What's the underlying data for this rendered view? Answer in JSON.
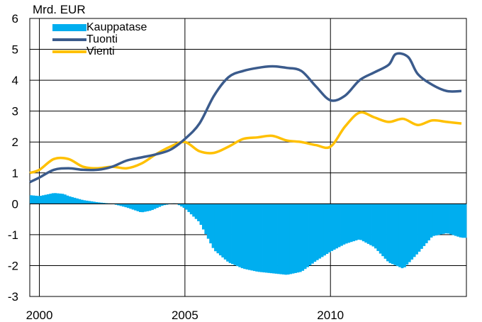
{
  "chart_data": {
    "type": "bar+line",
    "unit_label": "Mrd. EUR",
    "ylim": [
      -3,
      6
    ],
    "yticks": [
      "6",
      "5",
      "4",
      "3",
      "2",
      "1",
      "0",
      "-1",
      "-2",
      "-3"
    ],
    "xlim": [
      1999.67,
      2014.67
    ],
    "xticks": [
      {
        "label": "2000",
        "value": 2000
      },
      {
        "label": "2005",
        "value": 2005
      },
      {
        "label": "2010",
        "value": 2010
      }
    ],
    "grid": true,
    "legend_placement": "top-left",
    "colors": {
      "kauppatase": "#00AEEF",
      "tuonti": "#3B5B8C",
      "vienti": "#FFC000"
    },
    "series": [
      {
        "name": "Kauppatase",
        "kind": "bar",
        "points": [
          [
            1999.67,
            0.28
          ],
          [
            2000.0,
            0.25
          ],
          [
            2000.5,
            0.35
          ],
          [
            2000.83,
            0.32
          ],
          [
            2001.0,
            0.25
          ],
          [
            2001.5,
            0.12
          ],
          [
            2002.0,
            0.05
          ],
          [
            2002.5,
            0.0
          ],
          [
            2003.0,
            -0.12
          ],
          [
            2003.5,
            -0.28
          ],
          [
            2003.83,
            -0.22
          ],
          [
            2004.25,
            -0.05
          ],
          [
            2004.67,
            0.02
          ],
          [
            2005.0,
            -0.15
          ],
          [
            2005.5,
            -0.6
          ],
          [
            2006.0,
            -1.5
          ],
          [
            2006.5,
            -1.9
          ],
          [
            2007.0,
            -2.1
          ],
          [
            2007.5,
            -2.2
          ],
          [
            2008.0,
            -2.25
          ],
          [
            2008.5,
            -2.3
          ],
          [
            2009.0,
            -2.2
          ],
          [
            2009.5,
            -1.85
          ],
          [
            2010.0,
            -1.55
          ],
          [
            2010.5,
            -1.3
          ],
          [
            2011.0,
            -1.15
          ],
          [
            2011.5,
            -1.4
          ],
          [
            2012.0,
            -1.9
          ],
          [
            2012.5,
            -2.1
          ],
          [
            2013.0,
            -1.6
          ],
          [
            2013.5,
            -1.05
          ],
          [
            2014.0,
            -0.95
          ],
          [
            2014.5,
            -1.1
          ]
        ]
      },
      {
        "name": "Tuonti",
        "kind": "line",
        "points": [
          [
            1999.67,
            0.7
          ],
          [
            2000.0,
            0.85
          ],
          [
            2000.5,
            1.1
          ],
          [
            2001.0,
            1.15
          ],
          [
            2001.5,
            1.1
          ],
          [
            2002.0,
            1.1
          ],
          [
            2002.5,
            1.2
          ],
          [
            2003.0,
            1.4
          ],
          [
            2003.5,
            1.5
          ],
          [
            2004.0,
            1.6
          ],
          [
            2004.5,
            1.75
          ],
          [
            2005.0,
            2.1
          ],
          [
            2005.5,
            2.6
          ],
          [
            2006.0,
            3.5
          ],
          [
            2006.5,
            4.1
          ],
          [
            2007.0,
            4.3
          ],
          [
            2007.5,
            4.4
          ],
          [
            2008.0,
            4.45
          ],
          [
            2008.5,
            4.4
          ],
          [
            2009.0,
            4.3
          ],
          [
            2009.5,
            3.8
          ],
          [
            2010.0,
            3.35
          ],
          [
            2010.5,
            3.5
          ],
          [
            2011.0,
            4.0
          ],
          [
            2011.5,
            4.25
          ],
          [
            2012.0,
            4.5
          ],
          [
            2012.25,
            4.85
          ],
          [
            2012.67,
            4.75
          ],
          [
            2013.0,
            4.2
          ],
          [
            2013.5,
            3.85
          ],
          [
            2014.0,
            3.65
          ],
          [
            2014.5,
            3.65
          ]
        ]
      },
      {
        "name": "Vienti",
        "kind": "line",
        "points": [
          [
            1999.67,
            1.0
          ],
          [
            2000.0,
            1.1
          ],
          [
            2000.5,
            1.45
          ],
          [
            2001.0,
            1.45
          ],
          [
            2001.5,
            1.2
          ],
          [
            2002.0,
            1.15
          ],
          [
            2002.5,
            1.2
          ],
          [
            2003.0,
            1.15
          ],
          [
            2003.5,
            1.3
          ],
          [
            2004.0,
            1.6
          ],
          [
            2004.5,
            1.85
          ],
          [
            2005.0,
            2.0
          ],
          [
            2005.5,
            1.7
          ],
          [
            2006.0,
            1.65
          ],
          [
            2006.5,
            1.85
          ],
          [
            2007.0,
            2.1
          ],
          [
            2007.5,
            2.15
          ],
          [
            2008.0,
            2.2
          ],
          [
            2008.5,
            2.05
          ],
          [
            2009.0,
            2.0
          ],
          [
            2009.5,
            1.9
          ],
          [
            2010.0,
            1.85
          ],
          [
            2010.5,
            2.5
          ],
          [
            2011.0,
            2.95
          ],
          [
            2011.5,
            2.8
          ],
          [
            2012.0,
            2.65
          ],
          [
            2012.5,
            2.75
          ],
          [
            2013.0,
            2.55
          ],
          [
            2013.5,
            2.7
          ],
          [
            2014.0,
            2.65
          ],
          [
            2014.5,
            2.6
          ]
        ]
      }
    ]
  }
}
